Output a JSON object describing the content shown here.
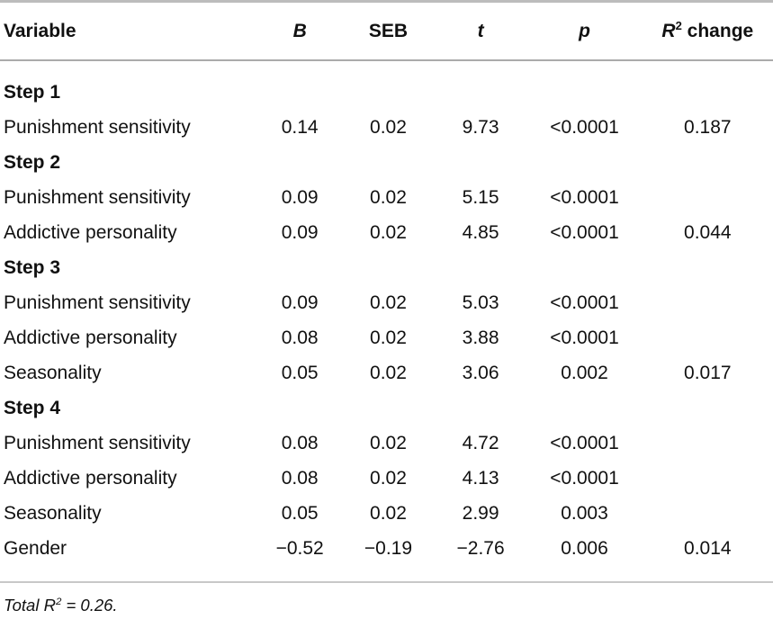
{
  "page": {
    "background": "#ffffff",
    "text_color": "#111111",
    "rule_top_color": "#bcbcbc",
    "rule_mid_color": "#ababab",
    "rule_bottom_color": "#c8c8c8"
  },
  "table": {
    "columns": [
      {
        "key": "variable",
        "label": "Variable",
        "italic": false,
        "align": "left"
      },
      {
        "key": "b",
        "label": "B",
        "italic": true,
        "align": "center"
      },
      {
        "key": "seb",
        "label": "SEB",
        "italic": false,
        "align": "center"
      },
      {
        "key": "t",
        "label": "t",
        "italic": true,
        "align": "center"
      },
      {
        "key": "p",
        "label": "p",
        "italic": true,
        "align": "center"
      },
      {
        "key": "r2change",
        "label": "R",
        "sup": "2",
        "rest": " change",
        "italic": true,
        "align": "center"
      }
    ],
    "rows": [
      {
        "type": "section",
        "label": "Step 1"
      },
      {
        "type": "data",
        "variable": "Punishment sensitivity",
        "b": "0.14",
        "seb": "0.02",
        "t": "9.73",
        "p": "<0.0001",
        "r2change": "0.187"
      },
      {
        "type": "section",
        "label": "Step 2"
      },
      {
        "type": "data",
        "variable": "Punishment sensitivity",
        "b": "0.09",
        "seb": "0.02",
        "t": "5.15",
        "p": "<0.0001",
        "r2change": ""
      },
      {
        "type": "data",
        "variable": "Addictive personality",
        "b": "0.09",
        "seb": "0.02",
        "t": "4.85",
        "p": "<0.0001",
        "r2change": "0.044"
      },
      {
        "type": "section",
        "label": "Step 3"
      },
      {
        "type": "data",
        "variable": "Punishment sensitivity",
        "b": "0.09",
        "seb": "0.02",
        "t": "5.03",
        "p": "<0.0001",
        "r2change": ""
      },
      {
        "type": "data",
        "variable": "Addictive personality",
        "b": "0.08",
        "seb": "0.02",
        "t": "3.88",
        "p": "<0.0001",
        "r2change": ""
      },
      {
        "type": "data",
        "variable": "Seasonality",
        "b": "0.05",
        "seb": "0.02",
        "t": "3.06",
        "p": "0.002",
        "r2change": "0.017"
      },
      {
        "type": "section",
        "label": "Step 4"
      },
      {
        "type": "data",
        "variable": "Punishment sensitivity",
        "b": "0.08",
        "seb": "0.02",
        "t": "4.72",
        "p": "<0.0001",
        "r2change": ""
      },
      {
        "type": "data",
        "variable": "Addictive personality",
        "b": "0.08",
        "seb": "0.02",
        "t": "4.13",
        "p": "<0.0001",
        "r2change": ""
      },
      {
        "type": "data",
        "variable": "Seasonality",
        "b": "0.05",
        "seb": "0.02",
        "t": "2.99",
        "p": "0.003",
        "r2change": ""
      },
      {
        "type": "data",
        "variable": "Gender",
        "b": "−0.52",
        "seb": "−0.19",
        "t": "−2.76",
        "p": "0.006",
        "r2change": "0.014"
      }
    ],
    "footnote": {
      "text": "Total R",
      "sup": "2",
      "rest": " = 0.26."
    }
  }
}
